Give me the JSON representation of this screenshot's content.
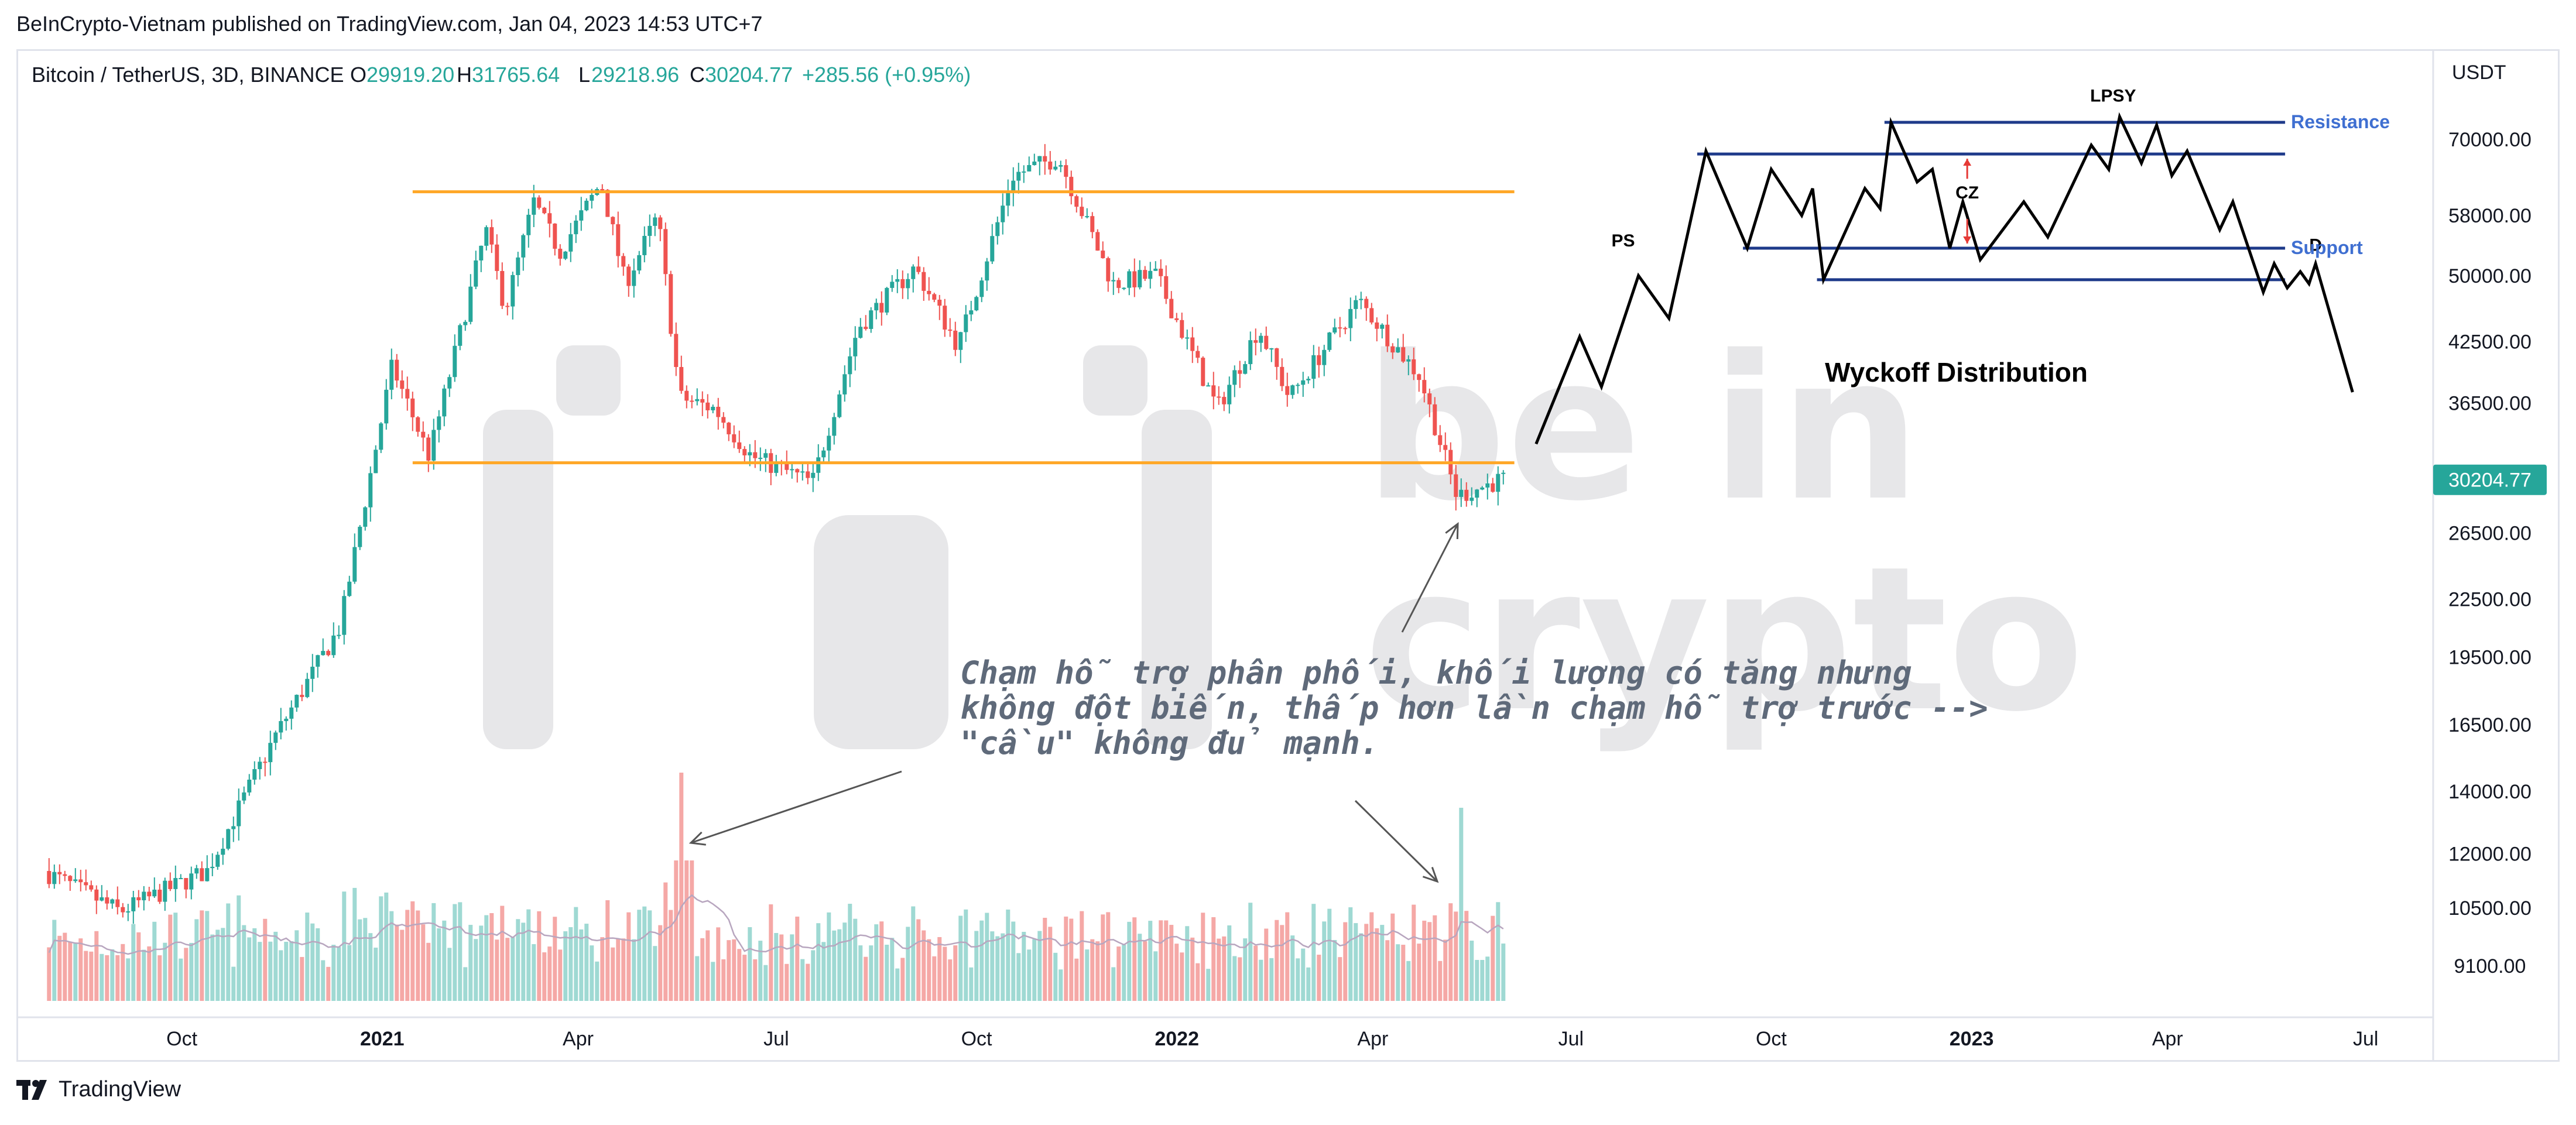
{
  "publisher_line": "BeInCrypto-Vietnam published on TradingView.com, Jan 04, 2023 14:53 UTC+7",
  "legend": {
    "symbol": "Bitcoin / TetherUS, 3D, BINANCE",
    "open_label": "O",
    "open": "29919.20",
    "high_label": "H",
    "high": "31765.64",
    "low_label": "L",
    "low": "29218.96",
    "close_label": "C",
    "close": "30204.77",
    "change": "+285.56 (+0.95%)"
  },
  "currency": "USDT",
  "last_price_tag": "30204.77",
  "footer_brand": "TradingView",
  "watermark": "be in crypto",
  "colors": {
    "up": "#26a69a",
    "down": "#ef5350",
    "vol_up": "#9fd9d3",
    "vol_down": "#f5a8a6",
    "level_line": "#ffa726",
    "wyckoff_box": "#1e3a8a",
    "label_blue": "#3f6fd1",
    "arrow_red": "#e53935",
    "annotation": "#5f6a7a",
    "grid_text": "#131722"
  },
  "chart_data": {
    "type": "candlestick",
    "x_ticks": [
      "Oct",
      "2021",
      "Apr",
      "Jul",
      "Oct",
      "2022",
      "Apr",
      "Jul",
      "Oct",
      "2023",
      "Apr",
      "Jul"
    ],
    "y_ticks": [
      70000,
      58000,
      50000,
      42500,
      36500,
      30204.77,
      26500,
      22500,
      19500,
      16500,
      14000,
      12000,
      10500,
      9100
    ],
    "y_tick_labels": [
      "70000.00",
      "58000.00",
      "50000.00",
      "42500.00",
      "36500.00",
      "30204.77",
      "26500.00",
      "22500.00",
      "19500.00",
      "16500.00",
      "14000.00",
      "12000.00",
      "10500.00",
      "9100.00"
    ],
    "y_scale": "log",
    "price_path": [
      {
        "t": "2020-08-01",
        "p": 11500
      },
      {
        "t": "2020-09-05",
        "p": 10400
      },
      {
        "t": "2020-10-15",
        "p": 11500
      },
      {
        "t": "2020-11-15",
        "p": 16000
      },
      {
        "t": "2020-12-15",
        "p": 21000
      },
      {
        "t": "2021-01-08",
        "p": 40000
      },
      {
        "t": "2021-01-25",
        "p": 32000
      },
      {
        "t": "2021-02-20",
        "p": 56000
      },
      {
        "t": "2021-03-01",
        "p": 46000
      },
      {
        "t": "2021-03-14",
        "p": 60000
      },
      {
        "t": "2021-03-26",
        "p": 53000
      },
      {
        "t": "2021-04-14",
        "p": 63000
      },
      {
        "t": "2021-04-25",
        "p": 49000
      },
      {
        "t": "2021-05-10",
        "p": 58000
      },
      {
        "t": "2021-05-20",
        "p": 37000
      },
      {
        "t": "2021-06-05",
        "p": 36000
      },
      {
        "t": "2021-06-22",
        "p": 32000
      },
      {
        "t": "2021-07-20",
        "p": 30000
      },
      {
        "t": "2021-08-10",
        "p": 44000
      },
      {
        "t": "2021-09-05",
        "p": 51000
      },
      {
        "t": "2021-09-25",
        "p": 42000
      },
      {
        "t": "2021-10-20",
        "p": 64000
      },
      {
        "t": "2021-11-10",
        "p": 67000
      },
      {
        "t": "2021-12-05",
        "p": 49000
      },
      {
        "t": "2021-12-25",
        "p": 50000
      },
      {
        "t": "2022-01-22",
        "p": 36000
      },
      {
        "t": "2022-02-10",
        "p": 44000
      },
      {
        "t": "2022-02-24",
        "p": 37000
      },
      {
        "t": "2022-03-28",
        "p": 47000
      },
      {
        "t": "2022-04-25",
        "p": 39000
      },
      {
        "t": "2022-05-12",
        "p": 29000
      },
      {
        "t": "2022-06-01",
        "p": 30200
      }
    ],
    "ohlc_last": {
      "open": 29919.2,
      "high": 31765.64,
      "low": 29218.96,
      "close": 30204.77
    },
    "volume_peaks": [
      "2021-05-19",
      "2022-05-12"
    ],
    "horizontal_levels": [
      {
        "price": 61500,
        "from": "2021-01-15",
        "to": "2022-06-05"
      },
      {
        "price": 31500,
        "from": "2021-01-15",
        "to": "2022-06-05"
      }
    ],
    "wyckoff_schematic": {
      "title": "Wyckoff Distribution",
      "labels": {
        "ps": "PS",
        "lpsy": "LPSY",
        "cz": "CZ",
        "d": "D",
        "resistance": "Resistance",
        "support": "Support"
      },
      "resistance_levels": [
        73000,
        67500
      ],
      "support_levels": [
        53500,
        49500
      ],
      "path": [
        {
          "t": "2022-06-15",
          "p": 33000
        },
        {
          "t": "2022-07-05",
          "p": 43000
        },
        {
          "t": "2022-07-15",
          "p": 38000
        },
        {
          "t": "2022-08-01",
          "p": 50000
        },
        {
          "t": "2022-08-15",
          "p": 45000
        },
        {
          "t": "2022-09-01",
          "p": 68000
        },
        {
          "t": "2022-09-20",
          "p": 53500
        },
        {
          "t": "2022-10-01",
          "p": 65000
        },
        {
          "t": "2022-10-15",
          "p": 58000
        },
        {
          "t": "2022-10-20",
          "p": 62000
        },
        {
          "t": "2022-10-25",
          "p": 49500
        },
        {
          "t": "2022-11-13",
          "p": 62000
        },
        {
          "t": "2022-11-20",
          "p": 59000
        },
        {
          "t": "2022-11-25",
          "p": 73000
        },
        {
          "t": "2022-12-07",
          "p": 63000
        },
        {
          "t": "2022-12-14",
          "p": 65000
        },
        {
          "t": "2022-12-22",
          "p": 53500
        },
        {
          "t": "2022-12-28",
          "p": 60000
        },
        {
          "t": "2023-01-05",
          "p": 52000
        },
        {
          "t": "2023-01-25",
          "p": 60000
        },
        {
          "t": "2023-02-05",
          "p": 55000
        },
        {
          "t": "2023-02-25",
          "p": 69000
        },
        {
          "t": "2023-03-05",
          "p": 65000
        },
        {
          "t": "2023-03-10",
          "p": 74000
        },
        {
          "t": "2023-03-20",
          "p": 66000
        },
        {
          "t": "2023-03-27",
          "p": 72500
        },
        {
          "t": "2023-04-03",
          "p": 64000
        },
        {
          "t": "2023-04-10",
          "p": 68000
        },
        {
          "t": "2023-04-25",
          "p": 56000
        },
        {
          "t": "2023-05-01",
          "p": 60000
        },
        {
          "t": "2023-05-15",
          "p": 48000
        },
        {
          "t": "2023-05-20",
          "p": 51500
        },
        {
          "t": "2023-05-26",
          "p": 48500
        },
        {
          "t": "2023-06-01",
          "p": 50500
        },
        {
          "t": "2023-06-05",
          "p": 49000
        },
        {
          "t": "2023-06-08",
          "p": 51500
        },
        {
          "t": "2023-06-25",
          "p": 37500
        }
      ]
    },
    "annotation": {
      "lines": [
        "Chạm hỗ trợ phân phối, khối lượng có tăng nhưng",
        "không đột biến, thấp hơn lần chạm hỗ trợ trước -->",
        "\"cầu\" không đủ mạnh."
      ]
    }
  }
}
